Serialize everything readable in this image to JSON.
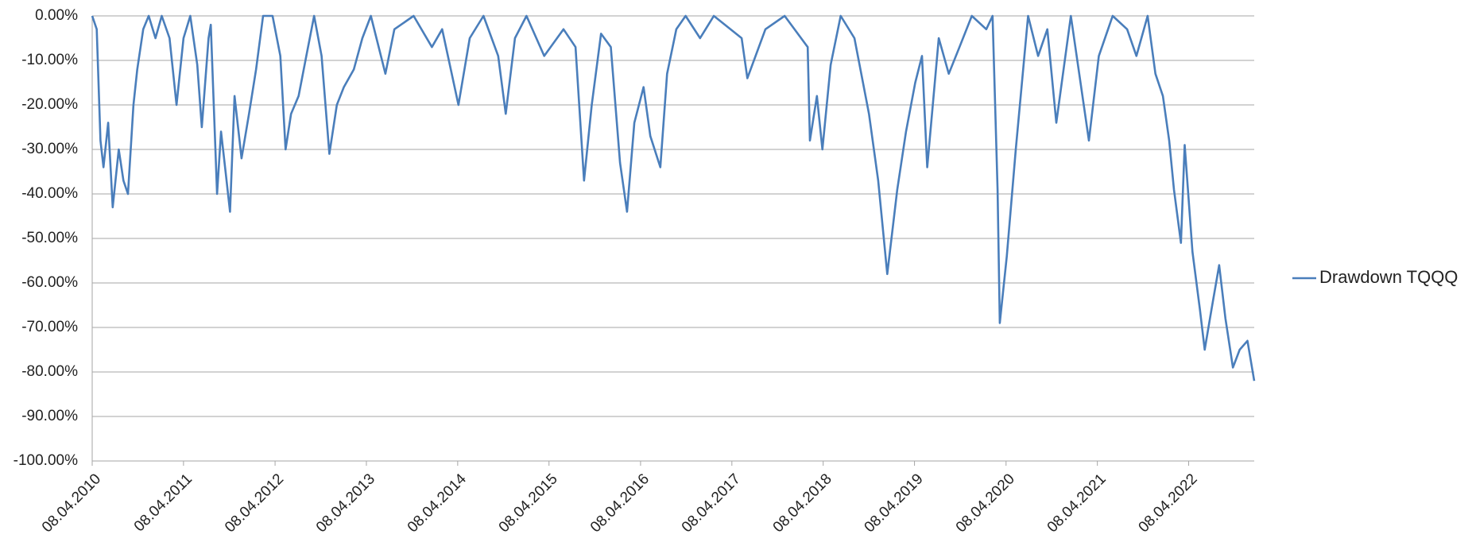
{
  "chart_data": {
    "type": "line",
    "x": [
      "08.04.2010",
      "26.04.2010",
      "11.05.2010",
      "23.05.2010",
      "11.06.2010",
      "29.06.2010",
      "23.07.2010",
      "11.08.2010",
      "29.08.2010",
      "20.09.2010",
      "05.10.2010",
      "29.10.2010",
      "20.11.2010",
      "17.12.2010",
      "11.01.2011",
      "11.02.2011",
      "11.03.2011",
      "08.04.2011",
      "05.05.2011",
      "02.06.2011",
      "20.06.2011",
      "17.07.2011",
      "26.07.2011",
      "20.08.2011",
      "05.09.2011",
      "23.09.2011",
      "11.10.2011",
      "29.10.2011",
      "26.11.2011",
      "26.12.2011",
      "23.01.2012",
      "20.02.2012",
      "29.03.2012",
      "29.04.2012",
      "20.05.2012",
      "11.06.2012",
      "11.07.2012",
      "11.08.2012",
      "11.09.2012",
      "11.10.2012",
      "11.11.2012",
      "11.12.2012",
      "08.01.2013",
      "17.02.2013",
      "23.03.2013",
      "26.04.2013",
      "23.06.2013",
      "29.07.2013",
      "14.10.2013",
      "26.12.2013",
      "05.02.2014",
      "11.04.2014",
      "26.05.2014",
      "20.07.2014",
      "17.09.2014",
      "17.10.2014",
      "23.11.2014",
      "08.01.2015",
      "20.03.2015",
      "05.06.2015",
      "23.07.2015",
      "26.08.2015",
      "26.09.2015",
      "02.11.2015",
      "11.12.2015",
      "17.01.2016",
      "14.02.2016",
      "14.03.2016",
      "20.04.2016",
      "17.05.2016",
      "26.06.2016",
      "23.07.2016",
      "29.08.2016",
      "05.10.2016",
      "02.12.2016",
      "26.01.2017",
      "17.05.2017",
      "09.06.2017",
      "20.08.2017",
      "05.11.2017",
      "05.02.2018",
      "14.02.2018",
      "14.03.2018",
      "05.04.2018",
      "08.05.2018",
      "17.06.2018",
      "11.08.2018",
      "08.10.2018",
      "14.11.2018",
      "20.12.2018",
      "29.01.2019",
      "05.03.2019",
      "11.04.2019",
      "08.05.2019",
      "29.05.2019",
      "14.07.2019",
      "23.08.2019",
      "05.10.2019",
      "23.11.2019",
      "20.01.2020",
      "14.02.2020",
      "05.03.2020",
      "14.03.2020",
      "11.04.2020",
      "17.05.2020",
      "05.07.2020",
      "14.08.2020",
      "20.09.2020",
      "26.10.2020",
      "23.12.2020",
      "05.03.2021",
      "14.04.2021",
      "08.06.2021",
      "05.08.2021",
      "11.09.2021",
      "26.10.2021",
      "26.11.2021",
      "26.12.2021",
      "20.01.2022",
      "08.02.2022",
      "08.03.2022",
      "23.03.2022",
      "23.04.2022",
      "23.05.2022",
      "11.06.2022",
      "08.07.2022",
      "08.08.2022",
      "02.09.2022",
      "02.10.2022",
      "29.10.2022",
      "29.11.2022",
      "26.12.2022"
    ],
    "series": [
      {
        "name": "Drawdown TQQQ",
        "color": "#4a7ebb",
        "values": [
          0,
          -3,
          -28,
          -34,
          -24,
          -43,
          -30,
          -37,
          -40,
          -20,
          -12,
          -3,
          0,
          -5,
          0,
          -5,
          -20,
          -5,
          0,
          -11,
          -25,
          -5,
          -2,
          -40,
          -26,
          -35,
          -44,
          -18,
          -32,
          -22,
          -12,
          0,
          0,
          -9,
          -30,
          -22,
          -18,
          -9,
          0,
          -9,
          -31,
          -20,
          -16,
          -12,
          -5,
          0,
          -13,
          -3,
          0,
          -7,
          -3,
          -20,
          -5,
          0,
          -9,
          -22,
          -5,
          0,
          -9,
          -3,
          -7,
          -37,
          -20,
          -4,
          -7,
          -33,
          -44,
          -24,
          -16,
          -27,
          -34,
          -13,
          -3,
          0,
          -5,
          0,
          -5,
          -14,
          -3,
          0,
          -7,
          -28,
          -18,
          -30,
          -11,
          0,
          -5,
          -22,
          -37,
          -58,
          -39,
          -26,
          -15,
          -9,
          -34,
          -5,
          -13,
          -7,
          0,
          -3,
          0,
          -39,
          -69,
          -54,
          -30,
          0,
          -9,
          -3,
          -24,
          0,
          -28,
          -9,
          0,
          -3,
          -9,
          0,
          -13,
          -18,
          -28,
          -39,
          -51,
          -29,
          -53,
          -66,
          -75,
          -66,
          -56,
          -68,
          -79,
          -75,
          -73,
          -82
        ]
      }
    ],
    "xlim": [
      "08.04.2010",
      "26.12.2022"
    ],
    "xticks": [
      "08.04.2010",
      "08.04.2011",
      "08.04.2012",
      "08.04.2013",
      "08.04.2014",
      "08.04.2015",
      "08.04.2016",
      "08.04.2017",
      "08.04.2018",
      "08.04.2019",
      "08.04.2020",
      "08.04.2021",
      "08.04.2022"
    ],
    "ylim": [
      -100,
      0
    ],
    "yticks": [
      {
        "value": 0,
        "label": "0.00%"
      },
      {
        "value": -10,
        "label": "-10.00%"
      },
      {
        "value": -20,
        "label": "-20.00%"
      },
      {
        "value": -30,
        "label": "-30.00%"
      },
      {
        "value": -40,
        "label": "-40.00%"
      },
      {
        "value": -50,
        "label": "-50.00%"
      },
      {
        "value": -60,
        "label": "-60.00%"
      },
      {
        "value": -70,
        "label": "-70.00%"
      },
      {
        "value": -80,
        "label": "-80.00%"
      },
      {
        "value": -90,
        "label": "-90.00%"
      },
      {
        "value": -100,
        "label": "-100.00%"
      }
    ],
    "grid": true,
    "legend": "right"
  }
}
